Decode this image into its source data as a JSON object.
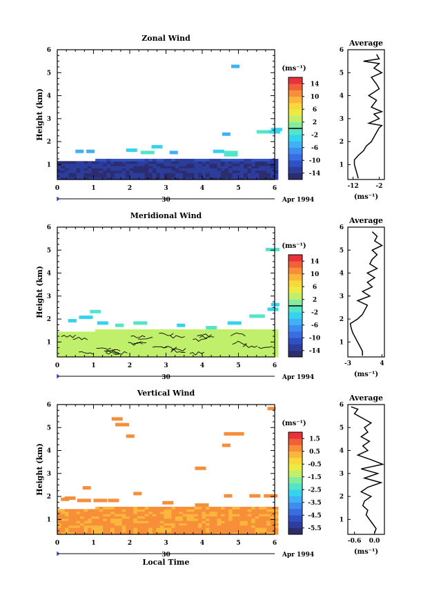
{
  "chart_data": [
    {
      "type": "heatmap",
      "title": "Zonal Wind",
      "xlabel": "",
      "ylabel": "Height (km)",
      "xlim": [
        0,
        6
      ],
      "ylim": [
        0.35,
        6
      ],
      "x_ticks": [
        "0",
        "1",
        "2",
        "3",
        "4",
        "5",
        "6"
      ],
      "y_ticks": [
        "1",
        "2",
        "3",
        "4",
        "5",
        "6"
      ],
      "date_label": "Apr 1994",
      "day_label": "30",
      "colorbar": {
        "unit": "(ms⁻¹)",
        "range": [
          -16,
          16
        ],
        "tick_labels": [
          "14",
          "10",
          "6",
          "2",
          "-2",
          "-6",
          "-10",
          "-14"
        ],
        "tick_values": [
          14,
          10,
          6,
          2,
          -2,
          -6,
          -10,
          -14
        ],
        "marker_value": 0
      },
      "dominant_value_low_levels": -13,
      "profile": {
        "title": "Average",
        "xlabel": "(ms⁻¹)",
        "xlim": [
          -14,
          0
        ],
        "x_ticks": [
          "-12",
          "-2"
        ],
        "x_tick_values": [
          -12,
          -2
        ],
        "heights": [
          0.4,
          0.6,
          0.8,
          1.0,
          1.2,
          1.4,
          1.6,
          1.8,
          2.0,
          2.2,
          2.4,
          2.6,
          2.7,
          2.8,
          3.0,
          3.2,
          3.3,
          3.5,
          3.8,
          4.0,
          4.3,
          4.5,
          4.8,
          5.0,
          5.2,
          5.4,
          5.5,
          5.6,
          5.8
        ],
        "values": [
          -10,
          -10.5,
          -11,
          -11.5,
          -11.5,
          -10,
          -8,
          -7,
          -5,
          -4,
          -3,
          -2,
          -1,
          -6,
          -2,
          -4,
          -1,
          -5,
          -3,
          -6,
          -2,
          -3,
          -5,
          -1,
          -4,
          -2,
          -8,
          -2,
          -3
        ]
      }
    },
    {
      "type": "heatmap",
      "title": "Meridional Wind",
      "xlabel": "",
      "ylabel": "Height (km)",
      "xlim": [
        0,
        6
      ],
      "ylim": [
        0.35,
        6
      ],
      "x_ticks": [
        "0",
        "1",
        "2",
        "3",
        "4",
        "5",
        "6"
      ],
      "y_ticks": [
        "1",
        "2",
        "3",
        "4",
        "5",
        "6"
      ],
      "date_label": "Apr 1994",
      "day_label": "30",
      "colorbar": {
        "unit": "(ms⁻¹)",
        "range": [
          -16,
          16
        ],
        "tick_labels": [
          "14",
          "10",
          "6",
          "2",
          "-2",
          "-6",
          "-10",
          "-14"
        ],
        "tick_values": [
          14,
          10,
          6,
          2,
          -2,
          -6,
          -10,
          -14
        ],
        "marker_value": 0
      },
      "dominant_value_low_levels": 3,
      "profile": {
        "title": "Average",
        "xlabel": "(ms⁻¹)",
        "xlim": [
          -3,
          4.5
        ],
        "x_ticks": [
          "-3",
          "4"
        ],
        "x_tick_values": [
          -3,
          4
        ],
        "heights": [
          0.4,
          0.6,
          0.8,
          1.0,
          1.2,
          1.4,
          1.6,
          1.8,
          2.0,
          2.2,
          2.4,
          2.6,
          2.8,
          3.0,
          3.2,
          3.4,
          3.6,
          3.8,
          4.0,
          4.2,
          4.4,
          4.6,
          4.8,
          5.0,
          5.2,
          5.4,
          5.6,
          5.8
        ],
        "values": [
          0,
          0,
          -0.5,
          -1,
          -1.5,
          -2,
          -2.3,
          -2.5,
          -1,
          0,
          0.5,
          1,
          -1,
          1.5,
          0,
          2,
          1,
          2.5,
          1,
          3,
          1.5,
          2,
          3,
          2,
          4,
          2.5,
          3,
          2
        ]
      }
    },
    {
      "type": "heatmap",
      "title": "Vertical Wind",
      "xlabel": "Local Time",
      "ylabel": "Height (km)",
      "xlim": [
        0,
        6
      ],
      "ylim": [
        0.35,
        6
      ],
      "x_ticks": [
        "0",
        "1",
        "2",
        "3",
        "4",
        "5",
        "6"
      ],
      "y_ticks": [
        "1",
        "2",
        "3",
        "4",
        "5",
        "6"
      ],
      "date_label": "Apr 1994",
      "day_label": "30",
      "colorbar": {
        "unit": "(ms⁻¹)",
        "range": [
          -6,
          2
        ],
        "tick_labels": [
          "1.5",
          "0.5",
          "-0.5",
          "-1.5",
          "-2.5",
          "-3.5",
          "-4.5",
          "-5.5"
        ],
        "tick_values": [
          1.5,
          0.5,
          -0.5,
          -1.5,
          -2.5,
          -3.5,
          -4.5,
          -5.5
        ]
      },
      "dominant_value_low_levels": 0.6,
      "profile": {
        "title": "Average",
        "xlabel": "(ms⁻¹)",
        "xlim": [
          -0.8,
          0.3
        ],
        "x_ticks": [
          "-0.6",
          "0.0"
        ],
        "x_tick_values": [
          -0.6,
          0.0
        ],
        "heights": [
          0.4,
          0.6,
          0.8,
          1.0,
          1.2,
          1.4,
          1.6,
          1.8,
          2.0,
          2.2,
          2.4,
          2.6,
          2.8,
          3.0,
          3.2,
          3.4,
          3.6,
          3.8,
          4.0,
          4.2,
          4.4,
          4.6,
          4.8,
          5.0,
          5.2,
          5.4,
          5.6,
          5.8,
          5.9
        ],
        "values": [
          0.0,
          0.05,
          -0.05,
          -0.15,
          -0.25,
          -0.2,
          -0.35,
          -0.3,
          -0.1,
          -0.4,
          -0.2,
          0.2,
          -0.3,
          0.1,
          -0.4,
          0.25,
          -0.1,
          -0.5,
          -0.2,
          -0.35,
          -0.15,
          -0.4,
          -0.2,
          -0.3,
          -0.1,
          -0.35,
          -0.6,
          -0.5,
          -0.7
        ]
      }
    }
  ]
}
